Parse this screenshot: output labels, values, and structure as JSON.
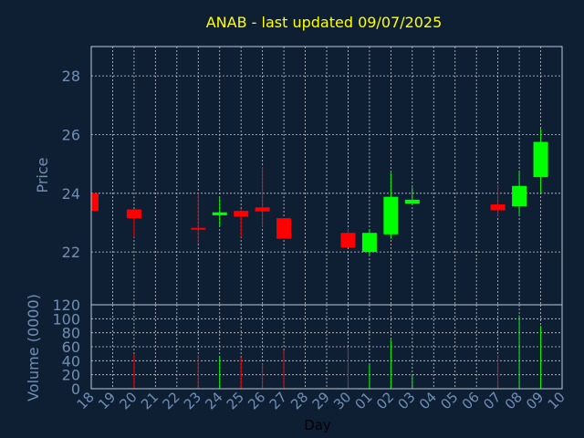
{
  "chart_data": {
    "type": "candlestick",
    "title": "ANAB - last updated 09/07/2025",
    "price_axis": {
      "label": "Price",
      "ticks": [
        22,
        24,
        26,
        28
      ],
      "ylim": [
        20.2,
        29
      ]
    },
    "volume_axis": {
      "label": "Volume (0000)",
      "ticks": [
        0,
        20,
        40,
        60,
        80,
        100,
        120
      ],
      "ylim": [
        0,
        120
      ]
    },
    "xlabel": "Day",
    "x_ticks": [
      "18",
      "19",
      "20",
      "21",
      "22",
      "23",
      "24",
      "25",
      "26",
      "27",
      "28",
      "29",
      "30",
      "01",
      "02",
      "03",
      "04",
      "05",
      "06",
      "07",
      "08",
      "09",
      "10"
    ],
    "grid": true,
    "colors": {
      "background": "#0f1f33",
      "up": "#00ff00",
      "down": "#ff0000",
      "title": "#ffff00",
      "axis_text": "#6f8fb5",
      "grid": "#c8c8c8"
    },
    "candles": [
      {
        "day": "18",
        "open": 24.0,
        "high": 24.0,
        "low": 23.4,
        "close": 23.4,
        "volume": 0
      },
      {
        "day": "20",
        "open": 23.45,
        "high": 23.45,
        "low": 22.5,
        "close": 23.15,
        "volume": 50
      },
      {
        "day": "23",
        "open": 22.82,
        "high": 24.0,
        "low": 22.3,
        "close": 22.78,
        "volume": 48
      },
      {
        "day": "24",
        "open": 23.25,
        "high": 23.85,
        "low": 22.9,
        "close": 23.35,
        "volume": 46
      },
      {
        "day": "25",
        "open": 23.4,
        "high": 23.45,
        "low": 22.5,
        "close": 23.2,
        "volume": 45
      },
      {
        "day": "26",
        "open": 23.52,
        "high": 24.9,
        "low": 22.85,
        "close": 23.38,
        "volume": 36
      },
      {
        "day": "27",
        "open": 23.15,
        "high": 23.15,
        "low": 22.45,
        "close": 22.45,
        "volume": 55
      },
      {
        "day": "30",
        "open": 22.65,
        "high": 22.8,
        "low": 22.15,
        "close": 22.15,
        "volume": 60
      },
      {
        "day": "01",
        "open": 22.0,
        "high": 22.75,
        "low": 21.9,
        "close": 22.65,
        "volume": 35
      },
      {
        "day": "02",
        "open": 22.6,
        "high": 24.7,
        "low": 22.45,
        "close": 23.88,
        "volume": 70
      },
      {
        "day": "03",
        "open": 23.65,
        "high": 24.2,
        "low": 23.62,
        "close": 23.78,
        "volume": 20
      },
      {
        "day": "07",
        "open": 23.62,
        "high": 24.3,
        "low": 23.2,
        "close": 23.42,
        "volume": 48
      },
      {
        "day": "08",
        "open": 23.55,
        "high": 24.75,
        "low": 23.25,
        "close": 24.25,
        "volume": 105
      },
      {
        "day": "09",
        "open": 24.55,
        "high": 26.2,
        "low": 24.0,
        "close": 25.75,
        "volume": 90
      }
    ]
  }
}
